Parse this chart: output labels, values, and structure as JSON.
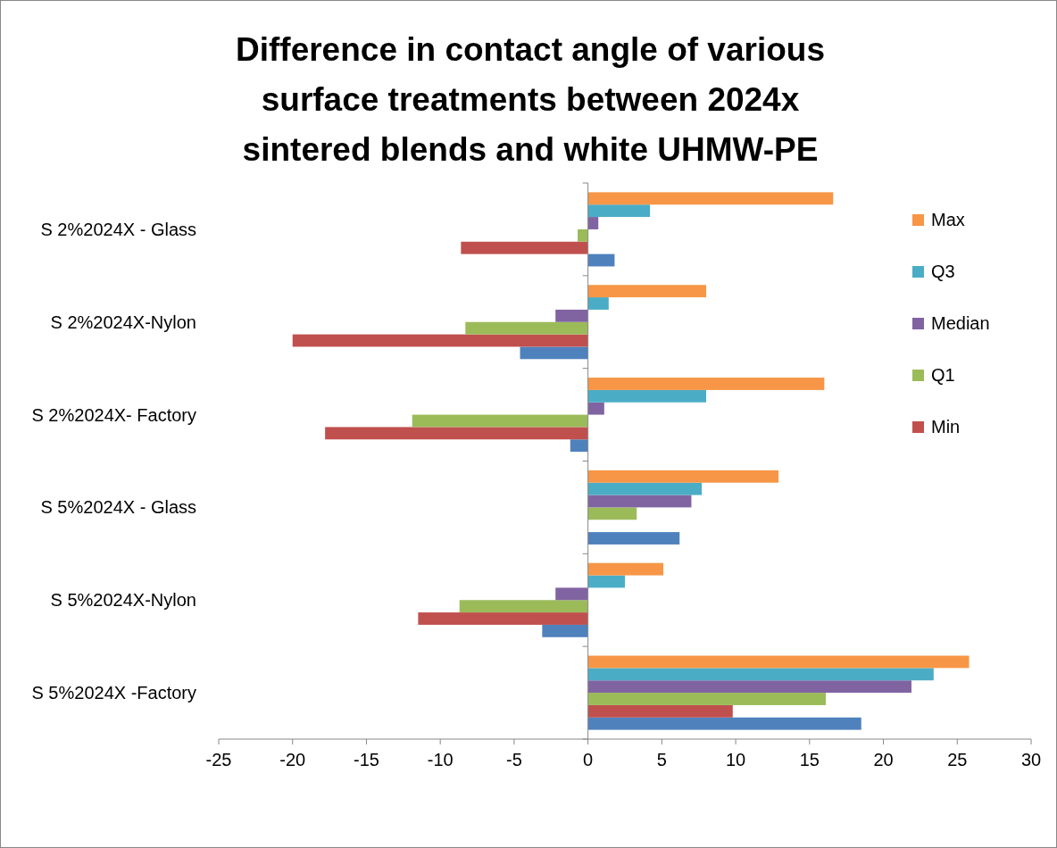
{
  "chart_data": {
    "type": "bar",
    "orientation": "horizontal",
    "title": "Difference in contact angle of various surface treatments between 2024x sintered blends and white UHMW-PE",
    "categories": [
      "S 2%2024X - Glass",
      "S 2%2024X-Nylon",
      "S 2%2024X- Factory",
      "S 5%2024X - Glass",
      "S 5%2024X-Nylon",
      "S 5%2024X -Factory"
    ],
    "series": [
      {
        "color": "#4f81bd",
        "values": [
          1.8,
          -4.6,
          -1.2,
          6.2,
          -3.1,
          18.5
        ]
      },
      {
        "name": "Min",
        "color": "#c0504d",
        "values": [
          -8.6,
          -20.0,
          -17.8,
          0,
          -11.5,
          9.8
        ]
      },
      {
        "name": "Q1",
        "color": "#9bbb59",
        "values": [
          -0.7,
          -8.3,
          -11.9,
          3.3,
          -8.7,
          16.1
        ]
      },
      {
        "name": "Median",
        "color": "#8064a2",
        "values": [
          0.7,
          -2.2,
          1.1,
          7.0,
          -2.2,
          21.9
        ]
      },
      {
        "name": "Q3",
        "color": "#4bacc6",
        "values": [
          4.2,
          1.4,
          8.0,
          7.7,
          2.5,
          23.4
        ]
      },
      {
        "name": "Max",
        "color": "#f79646",
        "values": [
          16.6,
          8.0,
          16.0,
          12.9,
          5.1,
          25.8
        ]
      }
    ],
    "xlim": [
      -25,
      30
    ],
    "xticks": [
      -25,
      -20,
      -15,
      -10,
      -5,
      0,
      5,
      10,
      15,
      20,
      25,
      30
    ],
    "legend": "right"
  }
}
